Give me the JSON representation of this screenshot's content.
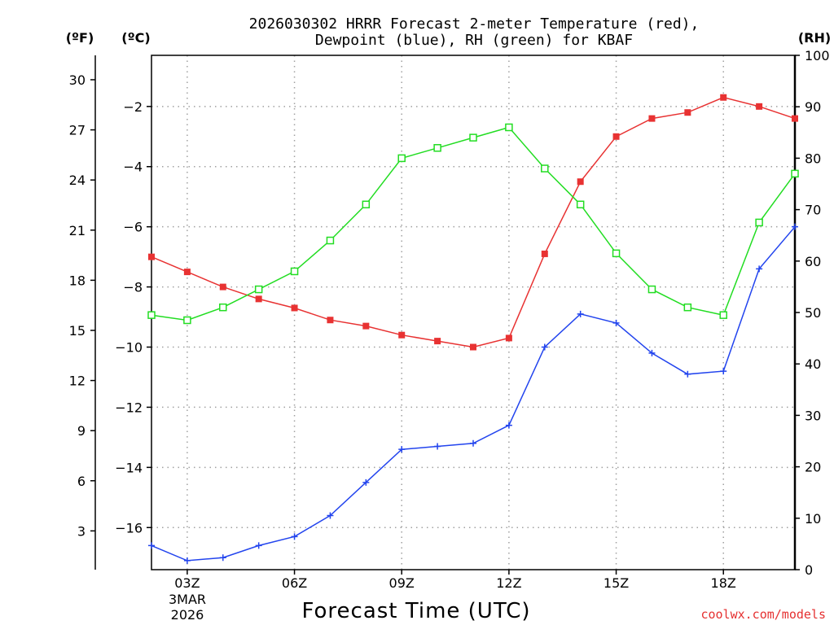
{
  "chart_data": {
    "type": "line",
    "title_line1": "2026030302 HRRR Forecast 2-meter Temperature (red),",
    "title_line2": "Dewpoint (blue), RH (green) for KBAF",
    "xlabel": "Forecast Time (UTC)",
    "credit": "coolwx.com/models",
    "date_label_line1": "3MAR",
    "date_label_line2": "2026",
    "x_hours": [
      2,
      3,
      4,
      5,
      6,
      7,
      8,
      9,
      10,
      11,
      12,
      13,
      14,
      15,
      16,
      17,
      18,
      19,
      20
    ],
    "x_ticks": [
      {
        "hour": 3,
        "label": "03Z"
      },
      {
        "hour": 6,
        "label": "06Z"
      },
      {
        "hour": 9,
        "label": "09Z"
      },
      {
        "hour": 12,
        "label": "12Z"
      },
      {
        "hour": 15,
        "label": "15Z"
      },
      {
        "hour": 18,
        "label": "18Z"
      }
    ],
    "xlim": [
      2,
      20
    ],
    "axes": {
      "fahrenheit": {
        "unit_label": "(ºF)",
        "ticks": [
          "3",
          "6",
          "9",
          "12",
          "15",
          "18",
          "21",
          "24",
          "27",
          "30"
        ]
      },
      "celsius": {
        "unit_label": "(ºC)",
        "ticks": [
          "-16",
          "-14",
          "-12",
          "-10",
          "-8",
          "-6",
          "-4",
          "-2"
        ],
        "ylim": [
          -17.4,
          -0.3
        ]
      },
      "rh": {
        "unit_label": "(RH)",
        "ticks": [
          "0",
          "10",
          "20",
          "30",
          "40",
          "50",
          "60",
          "70",
          "80",
          "90",
          "100"
        ],
        "ylim": [
          0,
          100
        ]
      }
    },
    "series": [
      {
        "name": "2-meter Temperature",
        "axis": "celsius",
        "color": "#e83232",
        "marker": "filled-square",
        "values": [
          -7.0,
          -7.5,
          -8.0,
          -8.4,
          -8.7,
          -9.1,
          -9.3,
          -9.6,
          -9.8,
          -10.0,
          -9.7,
          -6.9,
          -4.5,
          -3.0,
          -2.4,
          -2.2,
          -1.7,
          -2.0,
          -2.4
        ]
      },
      {
        "name": "Dewpoint",
        "axis": "celsius",
        "color": "#2244ee",
        "marker": "plus",
        "values": [
          -16.6,
          -17.1,
          -17.0,
          -16.6,
          -16.3,
          -15.6,
          -14.5,
          -13.4,
          -13.3,
          -13.2,
          -12.6,
          -10.0,
          -8.9,
          -9.2,
          -10.2,
          -10.9,
          -10.8,
          -7.4,
          -6.0
        ]
      },
      {
        "name": "RH",
        "axis": "rh",
        "color": "#22dd22",
        "marker": "open-square",
        "values": [
          49.5,
          48.5,
          51,
          54.5,
          58,
          64,
          71,
          80,
          82,
          84,
          86,
          78,
          71,
          61.5,
          54.5,
          51,
          49.5,
          67.5,
          77
        ]
      }
    ]
  }
}
